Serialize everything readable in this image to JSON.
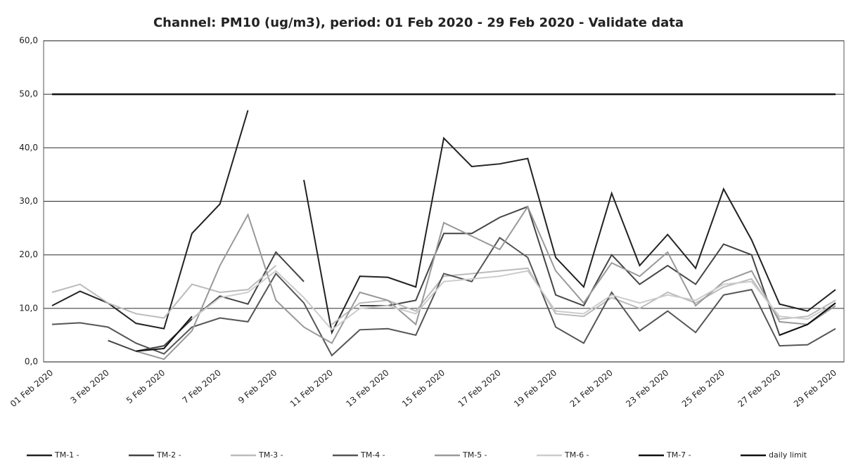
{
  "chart_data": {
    "type": "line",
    "title": "Channel: PM10 (ug/m3), period: 01 Feb 2020 - 29 Feb 2020 - Validate data",
    "categories": [
      "01 Feb 2020",
      null,
      "3 Feb 2020",
      null,
      "5 Feb 2020",
      null,
      "7 Feb 2020",
      null,
      "9 Feb 2020",
      null,
      "11 Feb 2020",
      null,
      "13 Feb 2020",
      null,
      "15 Feb 2020",
      null,
      "17 Feb 2020",
      null,
      "19 Feb 2020",
      null,
      "21 Feb 2020",
      null,
      "23 Feb 2020",
      null,
      "25 Feb 2020",
      null,
      "27 Feb 2020",
      null,
      "29 Feb 2020"
    ],
    "series": [
      {
        "name": "TM-1 -",
        "color": "#222222",
        "values": [
          10.5,
          13.2,
          11,
          7.2,
          6.2,
          24,
          29.5,
          47,
          null,
          34,
          5.5,
          16,
          15.8,
          14,
          41.8,
          36.5,
          37,
          38,
          19.5,
          14,
          31.5,
          18,
          23.8,
          17.5,
          32.3,
          22.8,
          10.8,
          9.5,
          13.5
        ]
      },
      {
        "name": "TM-2 -",
        "color": "#444444",
        "values": [
          null,
          null,
          4,
          2,
          3,
          8,
          12.3,
          10.8,
          20.5,
          15,
          null,
          10.5,
          10.5,
          11.5,
          24,
          24,
          27,
          29,
          12.5,
          10.5,
          20,
          14.5,
          18,
          14.5,
          22,
          20,
          5,
          7,
          11
        ]
      },
      {
        "name": "TM-3 -",
        "color": "#bbbbbb",
        "values": [
          13,
          14.5,
          11,
          9,
          8.2,
          14.5,
          13,
          13.5,
          18,
          null,
          7,
          11,
          11.5,
          9.5,
          16,
          16.5,
          17,
          17.5,
          9,
          8.5,
          12,
          10,
          13,
          11,
          14,
          15.5,
          8,
          8.5,
          11.5
        ]
      },
      {
        "name": "TM-4 -",
        "color": "#555555",
        "values": [
          7,
          7.3,
          6.5,
          3.5,
          1.5,
          6.5,
          8.2,
          7.5,
          16.5,
          11,
          1.2,
          6,
          6.2,
          5,
          16.5,
          15,
          23.2,
          19.5,
          6.5,
          3.5,
          13,
          5.8,
          9.5,
          5.5,
          12.5,
          13.5,
          3,
          3.2,
          6.2
        ]
      },
      {
        "name": "TM-5 -",
        "color": "#999999",
        "values": [
          null,
          null,
          null,
          2,
          0.5,
          5.8,
          18,
          27.5,
          11.5,
          6.5,
          3.5,
          13,
          11.5,
          7,
          26,
          23.5,
          21,
          29,
          17,
          11,
          18.5,
          16,
          20.5,
          10.5,
          15,
          17,
          7.5,
          7,
          10.5
        ]
      },
      {
        "name": "TM-6 -",
        "color": "#cccccc",
        "values": [
          null,
          null,
          null,
          null,
          null,
          8,
          12,
          13,
          17,
          12,
          6,
          10,
          10.5,
          9,
          15,
          15.5,
          16,
          17,
          9.5,
          9,
          12.5,
          11,
          12.5,
          11.5,
          14.5,
          15,
          8.5,
          8,
          11
        ]
      },
      {
        "name": "TM-7 -",
        "color": "#111111",
        "values": [
          null,
          null,
          null,
          2,
          2.5,
          8.5,
          null,
          null,
          null,
          null,
          null,
          null,
          null,
          null,
          null,
          null,
          null,
          null,
          null,
          null,
          null,
          null,
          null,
          null,
          null,
          null,
          5,
          7,
          11
        ]
      },
      {
        "name": "daily limit",
        "color": "#111111",
        "values": [
          50,
          50,
          50,
          50,
          50,
          50,
          50,
          50,
          50,
          50,
          50,
          50,
          50,
          50,
          50,
          50,
          50,
          50,
          50,
          50,
          50,
          50,
          50,
          50,
          50,
          50,
          50,
          50,
          50
        ]
      }
    ],
    "ylim": [
      0,
      60
    ],
    "yticks": [
      {
        "value": 0,
        "label": "0,0"
      },
      {
        "value": 10,
        "label": "10,0"
      },
      {
        "value": 20,
        "label": "20,0"
      },
      {
        "value": 30,
        "label": "30,0"
      },
      {
        "value": 40,
        "label": "40,0"
      },
      {
        "value": 50,
        "label": "50,0"
      },
      {
        "value": 60,
        "label": "60,0"
      }
    ],
    "grid": true,
    "legend": "bottom"
  }
}
